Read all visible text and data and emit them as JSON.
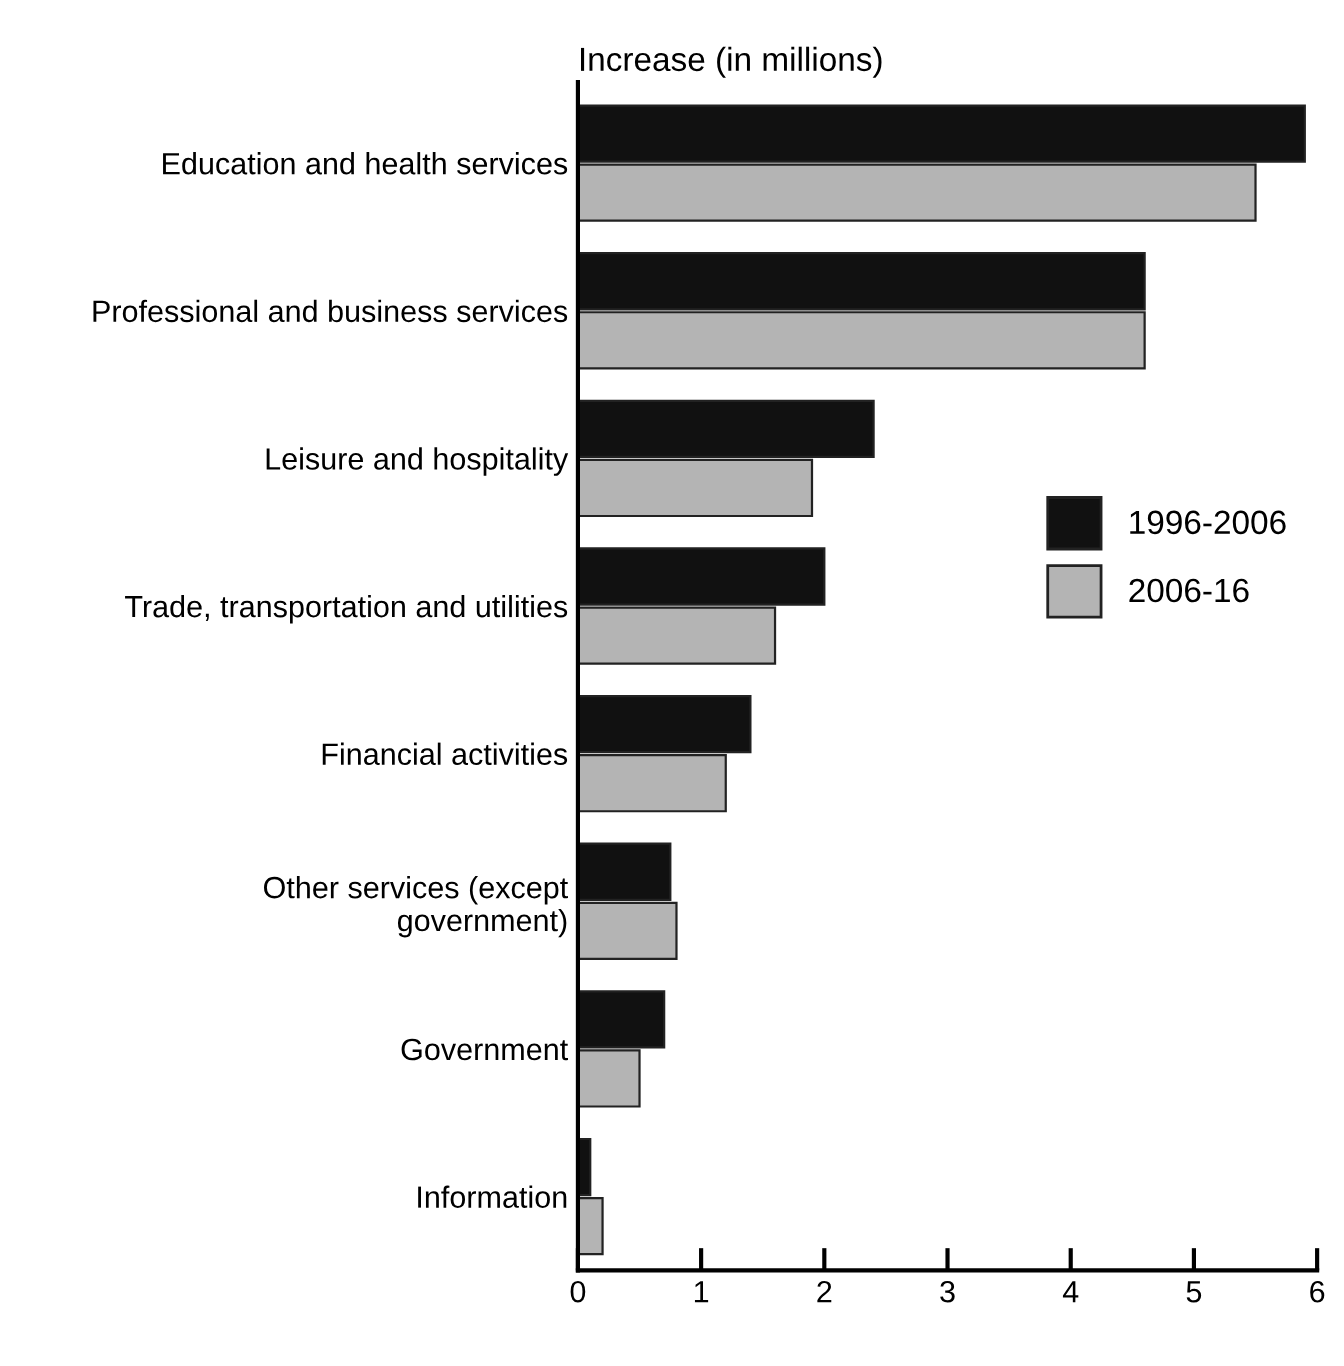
{
  "chart_data": {
    "type": "bar",
    "orientation": "horizontal",
    "xlabel": "Increase (in millions)",
    "categories": [
      "Education and health services",
      "Professional and business services",
      "Leisure and hospitality",
      "Trade, transportation and utilities",
      "Financial activities",
      "Other services (except\ngovernment)",
      "Government",
      "Information"
    ],
    "series": [
      {
        "name": "1996-2006",
        "color": "#111111",
        "values": [
          5.9,
          4.6,
          2.4,
          2.0,
          1.4,
          0.75,
          0.7,
          0.1
        ]
      },
      {
        "name": "2006-16",
        "color": "#b4b4b4",
        "values": [
          5.5,
          4.6,
          1.9,
          1.6,
          1.2,
          0.8,
          0.5,
          0.2
        ]
      }
    ],
    "xlim": [
      0,
      6
    ],
    "xticks": [
      0,
      1,
      2,
      3,
      4,
      5,
      6
    ],
    "grid": false,
    "legend": "right"
  }
}
